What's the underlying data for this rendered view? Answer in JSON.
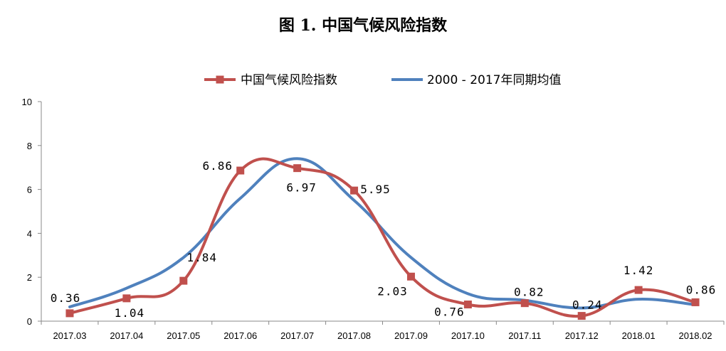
{
  "chart_data": {
    "type": "line",
    "title": "图 1. 中国气候风险指数",
    "categories": [
      "2017.03",
      "2017.04",
      "2017.05",
      "2017.06",
      "2017.07",
      "2017.08",
      "2017.09",
      "2017.10",
      "2017.11",
      "2017.12",
      "2018.01",
      "2018.02"
    ],
    "series": [
      {
        "name": "中国气候风险指数",
        "color": "#C0504D",
        "marker": "square",
        "values": [
          0.36,
          1.04,
          1.84,
          6.86,
          6.97,
          5.95,
          2.03,
          0.76,
          0.82,
          0.24,
          1.42,
          0.86
        ],
        "data_labels": [
          "0.36",
          "1.04",
          "1.84",
          "6.86",
          "6.97",
          "5.95",
          "2.03",
          "0.76",
          "0.82",
          "0.24",
          "1.42",
          "0.86"
        ]
      },
      {
        "name": "2000 - 2017年同期均值",
        "color": "#4F81BD",
        "marker": "none",
        "values": [
          0.65,
          1.5,
          2.9,
          5.6,
          7.4,
          5.5,
          2.9,
          1.25,
          0.95,
          0.6,
          1.0,
          0.75
        ]
      }
    ],
    "yticks": [
      "0",
      "2",
      "4",
      "6",
      "8",
      "10"
    ],
    "ylim": [
      0,
      10
    ],
    "grid": false,
    "legend_position": "top"
  }
}
